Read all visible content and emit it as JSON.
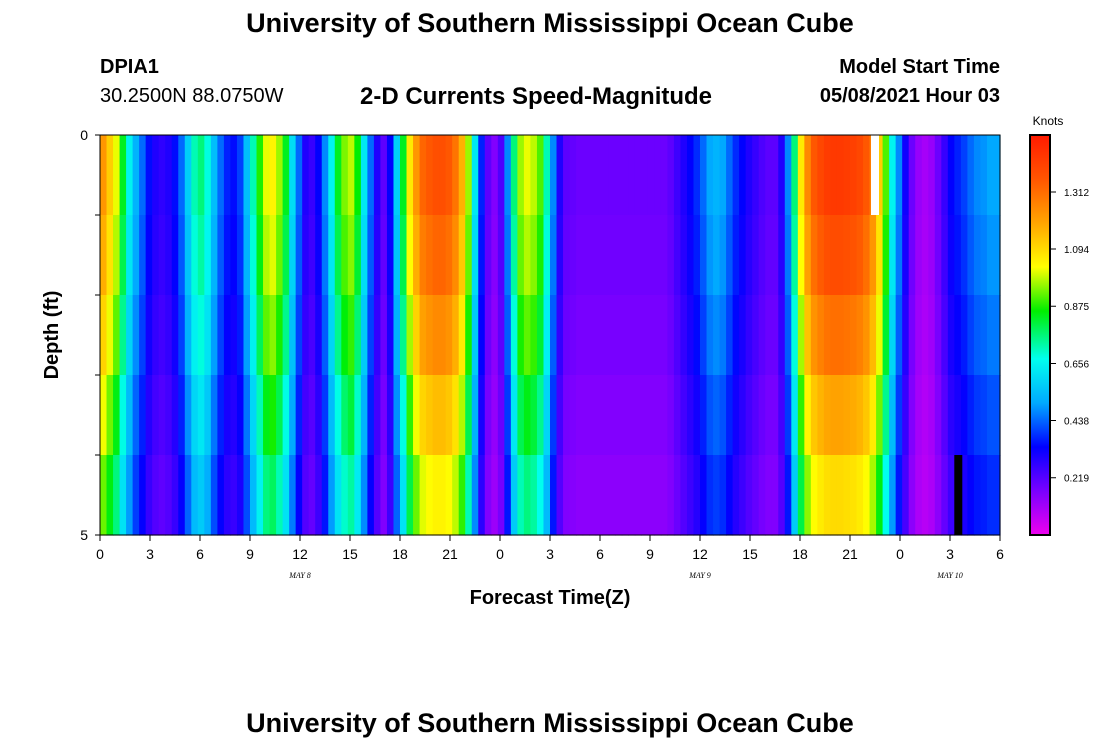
{
  "header": {
    "title": "University of Southern Mississippi Ocean Cube",
    "station": "DPIA1",
    "coordinates": "30.2500N  88.0750W",
    "subtitle": "2-D Currents Speed-Magnitude",
    "model_start_label": "Model Start Time",
    "model_start_value": "05/08/2021 Hour 03"
  },
  "footer": {
    "title": "University of Southern Mississippi Ocean Cube"
  },
  "colors": {
    "colormap": [
      "#ee00ee",
      "#7a00ff",
      "#0000ff",
      "#00aaff",
      "#00ffee",
      "#00ee00",
      "#ffff00",
      "#ffa500",
      "#ff5500",
      "#ff1a00"
    ]
  },
  "chart_data": {
    "type": "heatmap",
    "title": "2-D Currents Speed-Magnitude",
    "xlabel": "Forecast Time(Z)",
    "ylabel": "Depth (ft)",
    "x_ticks": [
      "0",
      "3",
      "6",
      "9",
      "12",
      "15",
      "18",
      "21",
      "0",
      "3",
      "6",
      "9",
      "12",
      "15",
      "18",
      "21",
      "0",
      "3",
      "6"
    ],
    "date_labels": [
      {
        "label": "MAY 8",
        "at_tick": 4
      },
      {
        "label": "MAY 9",
        "at_tick": 12
      },
      {
        "label": "MAY 10",
        "at_tick": 17
      }
    ],
    "y_ticks": [
      "0",
      "5"
    ],
    "ylim": [
      0,
      5
    ],
    "x_hours": [
      0,
      54
    ],
    "depth_levels": 5,
    "colorbar": {
      "label": "Knots",
      "ticks": [
        "1.312",
        "1.094",
        "0.875",
        "0.656",
        "0.438",
        "0.219"
      ],
      "tick_values": [
        1.312,
        1.094,
        0.875,
        0.656,
        0.438,
        0.219
      ],
      "range": [
        0,
        1.53
      ]
    },
    "hourly_speed_knots": [
      1.15,
      1.05,
      0.95,
      0.78,
      0.62,
      0.5,
      0.42,
      0.33,
      0.28,
      0.26,
      0.28,
      0.33,
      0.42,
      0.55,
      0.68,
      0.72,
      0.65,
      0.52,
      0.42,
      0.35,
      0.33,
      0.38,
      0.52,
      0.68,
      0.82,
      0.95,
      0.98,
      0.9,
      0.78,
      0.58,
      0.42,
      0.28,
      0.25,
      0.32,
      0.45,
      0.62,
      0.78,
      0.88,
      0.92,
      0.8,
      0.6,
      0.42,
      0.28,
      0.2,
      0.32,
      0.55,
      0.78,
      1.0,
      1.15,
      1.25,
      1.28,
      1.3,
      1.3,
      1.28,
      1.22,
      1.1,
      0.9,
      0.6,
      0.35,
      0.2,
      0.15,
      0.22,
      0.45,
      0.72,
      0.9,
      0.95,
      0.92,
      0.85,
      0.68,
      0.45,
      0.28,
      0.2,
      0.19,
      0.18,
      0.18,
      0.18,
      0.18,
      0.18,
      0.18,
      0.18,
      0.18,
      0.18,
      0.18,
      0.18,
      0.18,
      0.18,
      0.18,
      0.2,
      0.24,
      0.28,
      0.32,
      0.36,
      0.42,
      0.48,
      0.5,
      0.48,
      0.42,
      0.36,
      0.32,
      0.28,
      0.25,
      0.22,
      0.2,
      0.2,
      0.28,
      0.45,
      0.72,
      1.0,
      1.18,
      1.28,
      1.32,
      1.35,
      1.36,
      1.36,
      1.35,
      1.34,
      1.32,
      1.28,
      1.2,
      1.05,
      0.85,
      0.62,
      0.45,
      0.3,
      0.18,
      0.12,
      0.1,
      0.12,
      0.18,
      0.25,
      0.32,
      0.35,
      0.38,
      0.42,
      0.45,
      0.46,
      0.48,
      0.48
    ],
    "depth_factors": [
      1.06,
      1.02,
      0.96,
      0.88,
      0.8
    ],
    "missing_cells": [
      {
        "hour": 46.5,
        "depth_level": 1,
        "color": "white"
      },
      {
        "hour": 51.5,
        "depth_level": 5,
        "color": "black"
      }
    ]
  }
}
